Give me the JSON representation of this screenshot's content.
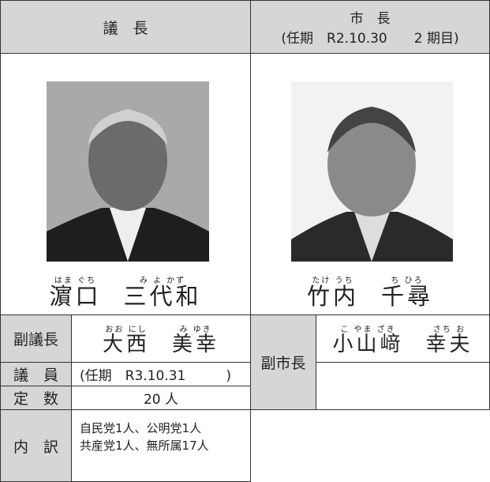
{
  "header": {
    "chair": "議　長",
    "mayor": "市　長",
    "mayor_term": "(任期　R2.10.30　　2 期目)"
  },
  "chair_name": [
    {
      "kana": "はま ぐち",
      "kanji": "濵口"
    },
    {
      "kana": "み よ かず",
      "kanji": "三代和"
    }
  ],
  "mayor_name": [
    {
      "kana": "たけ うち",
      "kanji": "竹内"
    },
    {
      "kana": "ち ひろ",
      "kanji": "千尋"
    }
  ],
  "vice_chair": {
    "label": "副議長",
    "name": [
      {
        "kana": "おお にし",
        "kanji": "大西"
      },
      {
        "kana": "み ゆき",
        "kanji": "美幸"
      }
    ]
  },
  "vice_mayor": {
    "label": "副市長",
    "name": [
      {
        "kana": "こ やま ざき",
        "kanji": "小山﨑"
      },
      {
        "kana": "さち お",
        "kanji": "幸夫"
      }
    ]
  },
  "members": {
    "label": "議　員",
    "term": "(任期　R3.10.31　　　)"
  },
  "capacity": {
    "label": "定　数",
    "value": "20 人"
  },
  "breakdown": {
    "label": "内　訳",
    "lines": [
      "自民党1人、公明党1人",
      "共産党1人、無所属17人"
    ]
  }
}
